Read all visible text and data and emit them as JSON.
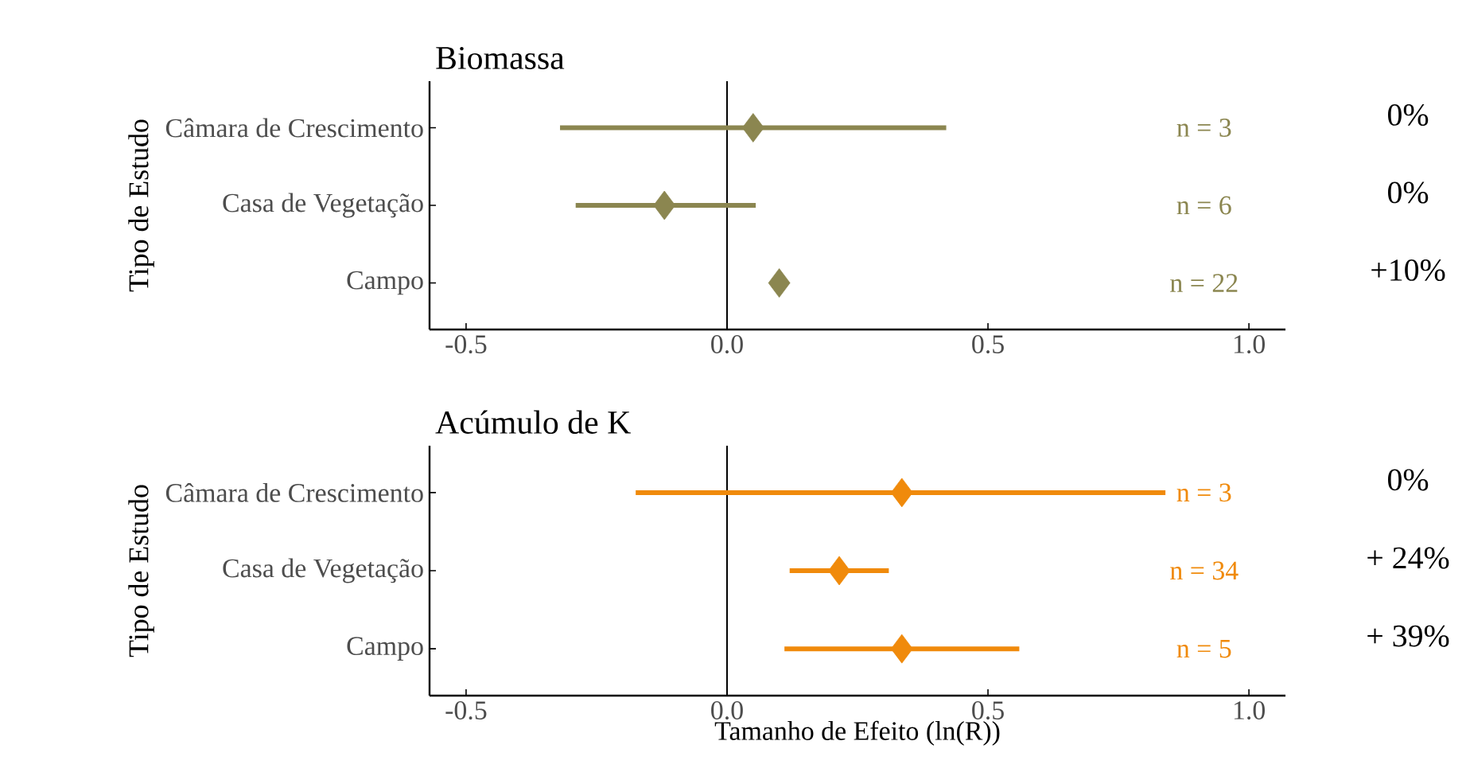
{
  "chart_data": [
    {
      "type": "scatter",
      "orientation": "horizontal",
      "title": "Biomassa",
      "ylabel": "Tipo de Estudo",
      "categories": [
        "Câmara de Crescimento",
        "Casa de Vegetação",
        "Campo"
      ],
      "values": [
        0.05,
        -0.12,
        0.1
      ],
      "errors": [
        [
          -0.32,
          0.42
        ],
        [
          -0.29,
          0.055
        ],
        null
      ],
      "color": "#8b8650",
      "marker": "diamond",
      "xlim": [
        -0.57,
        1.07
      ],
      "xticks": [
        {
          "value": -0.5,
          "label": "-0.5"
        },
        {
          "value": 0,
          "label": "0.0"
        },
        {
          "value": 0.5,
          "label": "0.5"
        },
        {
          "value": 1,
          "label": "1.0"
        }
      ],
      "grid": false,
      "ref_lines": [
        {
          "axis": "x",
          "value": 0,
          "color": "#000000"
        }
      ],
      "annotations": [
        "n = 3",
        "n = 6",
        "n = 22",
        "0%",
        "0%",
        "+10%"
      ]
    },
    {
      "type": "scatter",
      "orientation": "horizontal",
      "title": "Acúmulo de K",
      "xlabel": "Tamanho de Efeito (ln(R))",
      "ylabel": "Tipo de Estudo",
      "categories": [
        "Câmara de Crescimento",
        "Casa de Vegetação",
        "Campo"
      ],
      "values": [
        0.335,
        0.215,
        0.335
      ],
      "errors": [
        [
          -0.175,
          0.84
        ],
        [
          0.12,
          0.31
        ],
        [
          0.11,
          0.56
        ]
      ],
      "color": "#f08a0b",
      "marker": "diamond",
      "xlim": [
        -0.57,
        1.07
      ],
      "xticks": [
        {
          "value": -0.5,
          "label": "-0.5"
        },
        {
          "value": 0,
          "label": "0.0"
        },
        {
          "value": 0.5,
          "label": "0.5"
        },
        {
          "value": 1,
          "label": "1.0"
        }
      ],
      "grid": false,
      "ref_lines": [
        {
          "axis": "x",
          "value": 0,
          "color": "#000000"
        }
      ],
      "annotations": [
        "n = 3",
        "n = 34",
        "n = 5",
        "0%",
        "+ 24%",
        "+ 39%"
      ]
    }
  ]
}
